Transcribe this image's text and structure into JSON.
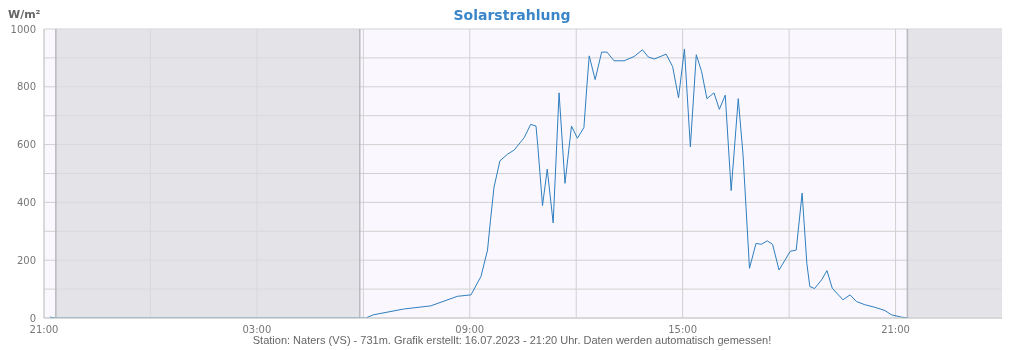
{
  "chart_data": {
    "type": "line",
    "title": "Solarstrahlung",
    "ylabel": "W/m²",
    "annotations": [
      "Station: Naters (VS) - 731m. Grafik erstellt: 16.07.2023 - 21:20 Uhr. Daten werden automatisch gemessen!"
    ],
    "x": [
      "2023-07-15T21:10",
      "2023-07-15T21:20",
      "2023-07-16T06:04",
      "2023-07-16T06:17",
      "2023-07-16T07:08",
      "2023-07-16T07:54",
      "2023-07-16T08:39",
      "2023-07-16T09:02",
      "2023-07-16T09:19",
      "2023-07-16T09:30",
      "2023-07-16T09:35",
      "2023-07-16T09:41",
      "2023-07-16T09:51",
      "2023-07-16T10:04",
      "2023-07-16T10:15",
      "2023-07-16T10:32",
      "2023-07-16T10:43",
      "2023-07-16T10:52",
      "2023-07-16T10:55",
      "2023-07-16T11:03",
      "2023-07-16T11:11",
      "2023-07-16T11:21",
      "2023-07-16T11:31",
      "2023-07-16T11:41",
      "2023-07-16T11:52",
      "2023-07-16T12:02",
      "2023-07-16T12:13",
      "2023-07-16T12:18",
      "2023-07-16T12:22",
      "2023-07-16T12:32",
      "2023-07-16T12:43",
      "2023-07-16T12:52",
      "2023-07-16T13:04",
      "2023-07-16T13:21",
      "2023-07-16T13:38",
      "2023-07-16T13:52",
      "2023-07-16T14:02",
      "2023-07-16T14:12",
      "2023-07-16T14:32",
      "2023-07-16T14:43",
      "2023-07-16T14:53",
      "2023-07-16T15:03",
      "2023-07-16T15:13",
      "2023-07-16T15:23",
      "2023-07-16T15:32",
      "2023-07-16T15:41",
      "2023-07-16T15:53",
      "2023-07-16T16:02",
      "2023-07-16T16:12",
      "2023-07-16T16:22",
      "2023-07-16T16:34",
      "2023-07-16T16:42",
      "2023-07-16T16:53",
      "2023-07-16T17:04",
      "2023-07-16T17:13",
      "2023-07-16T17:23",
      "2023-07-16T17:32",
      "2023-07-16T17:43",
      "2023-07-16T18:02",
      "2023-07-16T18:12",
      "2023-07-16T18:22",
      "2023-07-16T18:30",
      "2023-07-16T18:35",
      "2023-07-16T18:43",
      "2023-07-16T18:55",
      "2023-07-16T19:04",
      "2023-07-16T19:13",
      "2023-07-16T19:31",
      "2023-07-16T19:43",
      "2023-07-16T19:54",
      "2023-07-16T20:08",
      "2023-07-16T20:25",
      "2023-07-16T20:42",
      "2023-07-16T20:53",
      "2023-07-16T21:10",
      "2023-07-16T21:22"
    ],
    "series": [
      {
        "color": "#2f7ebf",
        "values": [
          3,
          0,
          0,
          11,
          31,
          42,
          75,
          80,
          144,
          235,
          338,
          453,
          544,
          567,
          581,
          624,
          670,
          664,
          596,
          389,
          515,
          329,
          779,
          466,
          664,
          622,
          659,
          802,
          907,
          825,
          920,
          920,
          890,
          890,
          905,
          928,
          903,
          896,
          913,
          870,
          762,
          931,
          592,
          911,
          853,
          759,
          779,
          722,
          771,
          441,
          759,
          567,
          172,
          258,
          255,
          267,
          255,
          166,
          231,
          235,
          432,
          189,
          109,
          102,
          132,
          164,
          103,
          63,
          80,
          57,
          46,
          37,
          26,
          11,
          3,
          0
        ]
      }
    ],
    "xlim": [
      "2023-07-15T21:00",
      "2023-07-17T00:00"
    ],
    "xticks": [
      {
        "value": "2023-07-15T21:00",
        "label": "21:00"
      },
      {
        "value": "2023-07-16T00:00",
        "label": null
      },
      {
        "value": "2023-07-16T03:00",
        "label": "03:00"
      },
      {
        "value": "2023-07-16T06:00",
        "label": null
      },
      {
        "value": "2023-07-16T09:00",
        "label": "09:00"
      },
      {
        "value": "2023-07-16T12:00",
        "label": null
      },
      {
        "value": "2023-07-16T15:00",
        "label": "15:00"
      },
      {
        "value": "2023-07-16T18:00",
        "label": null
      },
      {
        "value": "2023-07-16T21:00",
        "label": "21:00"
      }
    ],
    "ylim": [
      0,
      1000
    ],
    "yticks": [
      0,
      {
        "value": 100,
        "label": null
      },
      200,
      {
        "value": 300,
        "label": null
      },
      400,
      {
        "value": 500,
        "label": null
      },
      600,
      {
        "value": 700,
        "label": null
      },
      800,
      {
        "value": 900,
        "label": null
      },
      1000
    ],
    "grid": true,
    "marker": "none",
    "line_style": "solid",
    "bands": [
      {
        "axis": "x",
        "from": "2023-07-15T21:20",
        "to": "2023-07-16T05:54",
        "color": "#dcdcdf"
      },
      {
        "axis": "x",
        "from": "2023-07-16T21:20",
        "to": "2023-07-17T00:00",
        "color": "#dcdcdf"
      }
    ],
    "ref_lines": [
      {
        "axis": "x",
        "value": "2023-07-15T21:20",
        "color": "#b8b8c0"
      },
      {
        "axis": "x",
        "value": "2023-07-16T05:54",
        "color": "#b8b8c0"
      },
      {
        "axis": "x",
        "value": "2023-07-16T21:20",
        "color": "#b8b8c0"
      }
    ]
  }
}
